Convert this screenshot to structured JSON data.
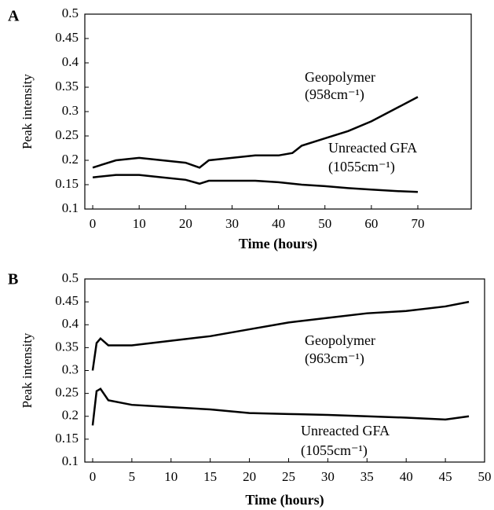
{
  "chart_data": [
    {
      "type": "line",
      "panel": "A",
      "xlabel": "Time (hours)",
      "ylabel": "Peak intensity",
      "x": [
        0,
        5,
        10,
        15,
        20,
        23,
        25,
        30,
        35,
        40,
        43,
        45,
        50,
        55,
        60,
        65,
        70
      ],
      "series": [
        {
          "color": "#000000",
          "values": [
            0.185,
            0.2,
            0.205,
            0.2,
            0.195,
            0.185,
            0.2,
            0.205,
            0.21,
            0.21,
            0.215,
            0.23,
            0.245,
            0.26,
            0.28,
            0.305,
            0.33
          ]
        },
        {
          "color": "#000000",
          "values": [
            0.165,
            0.17,
            0.17,
            0.165,
            0.16,
            0.152,
            0.158,
            0.158,
            0.158,
            0.155,
            0.152,
            0.15,
            0.147,
            0.143,
            0.14,
            0.137,
            0.135
          ]
        }
      ],
      "annotations": [
        "Geopolymer",
        "(958cm⁻¹)",
        "Unreacted GFA",
        "(1055cm⁻¹)"
      ],
      "xlim": [
        -1.7,
        81.5
      ],
      "xticks": [
        0,
        10,
        20,
        30,
        40,
        50,
        60,
        70
      ],
      "ylim": [
        0.1,
        0.5
      ],
      "yticks": [
        0.1,
        0.15,
        0.2,
        0.25,
        0.3,
        0.35,
        0.4,
        0.45,
        0.5
      ]
    },
    {
      "type": "line",
      "panel": "B",
      "xlabel": "Time (hours)",
      "ylabel": "Peak intensity",
      "x": [
        0,
        0.5,
        1,
        2,
        5,
        10,
        15,
        20,
        25,
        30,
        35,
        40,
        45,
        48
      ],
      "series": [
        {
          "color": "#000000",
          "values": [
            0.3,
            0.36,
            0.37,
            0.355,
            0.355,
            0.365,
            0.375,
            0.39,
            0.405,
            0.415,
            0.425,
            0.43,
            0.44,
            0.45
          ]
        },
        {
          "color": "#000000",
          "values": [
            0.18,
            0.255,
            0.26,
            0.235,
            0.225,
            0.22,
            0.215,
            0.207,
            0.205,
            0.203,
            0.2,
            0.197,
            0.193,
            0.2
          ]
        }
      ],
      "annotations": [
        "Geopolymer",
        "(963cm⁻¹)",
        "Unreacted GFA",
        "(1055cm⁻¹)"
      ],
      "xlim": [
        -1,
        50
      ],
      "xticks": [
        0,
        5,
        10,
        15,
        20,
        25,
        30,
        35,
        40,
        45,
        50
      ],
      "ylim": [
        0.1,
        0.5
      ],
      "yticks": [
        0.1,
        0.15,
        0.2,
        0.25,
        0.3,
        0.35,
        0.4,
        0.45,
        0.5
      ]
    }
  ]
}
